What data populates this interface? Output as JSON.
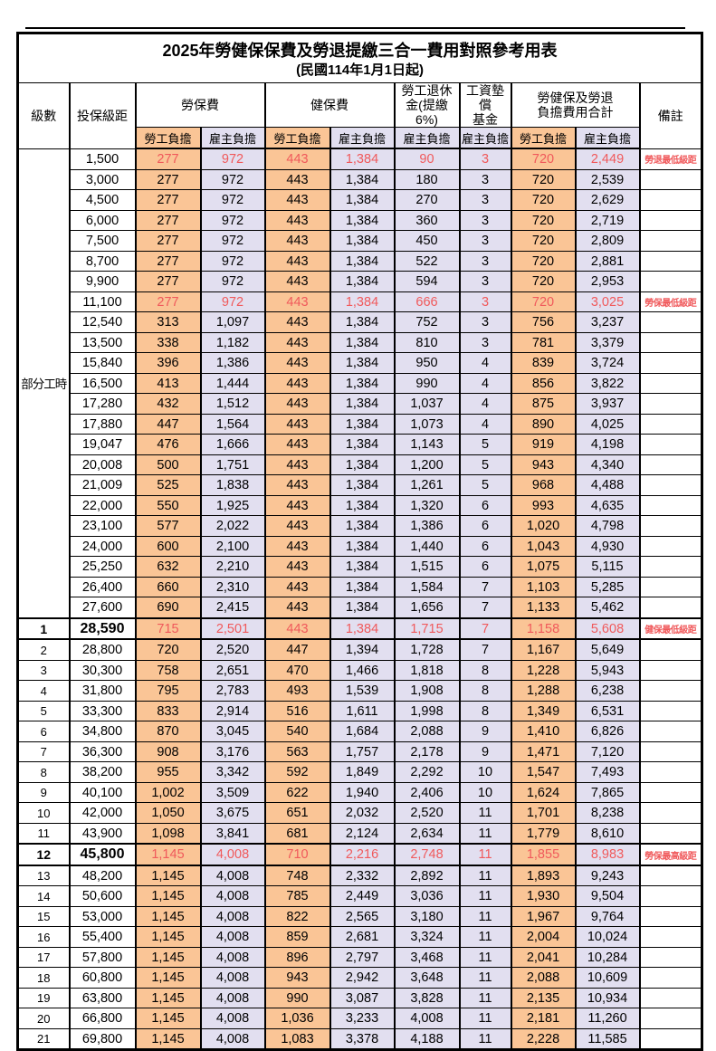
{
  "title": {
    "line1": "2025年勞健保保費及勞退提繳三合一費用對照參考用表",
    "line2": "(民國114年1月1日起)"
  },
  "header": {
    "level": "級數",
    "bracket": "投保級距",
    "labor": "勞保費",
    "health": "健保費",
    "pension": "勞工退休\n金(提繳6%)",
    "wage_fund": "工資墊償\n基金",
    "total": "勞健保及勞退\n負擔費用合計",
    "remark": "備註",
    "emp": "勞工負擔",
    "er": "雇主負擔"
  },
  "part_time_label": "部分工時",
  "part_time_count": 23,
  "colors": {
    "employee_bg": "#FAC596",
    "employer_bg": "#E2DFF0",
    "highlight_text": "#F0595B",
    "border": "#000000"
  },
  "rows": [
    {
      "level": "",
      "bracket": "1,500",
      "v": [
        "277",
        "972",
        "443",
        "1,384",
        "90",
        "3",
        "720",
        "2,449"
      ],
      "remark": "勞退最低級距",
      "red": true,
      "big": false
    },
    {
      "level": "",
      "bracket": "3,000",
      "v": [
        "277",
        "972",
        "443",
        "1,384",
        "180",
        "3",
        "720",
        "2,539"
      ],
      "remark": "",
      "red": false,
      "big": false
    },
    {
      "level": "",
      "bracket": "4,500",
      "v": [
        "277",
        "972",
        "443",
        "1,384",
        "270",
        "3",
        "720",
        "2,629"
      ],
      "remark": "",
      "red": false,
      "big": false
    },
    {
      "level": "",
      "bracket": "6,000",
      "v": [
        "277",
        "972",
        "443",
        "1,384",
        "360",
        "3",
        "720",
        "2,719"
      ],
      "remark": "",
      "red": false,
      "big": false
    },
    {
      "level": "",
      "bracket": "7,500",
      "v": [
        "277",
        "972",
        "443",
        "1,384",
        "450",
        "3",
        "720",
        "2,809"
      ],
      "remark": "",
      "red": false,
      "big": false
    },
    {
      "level": "",
      "bracket": "8,700",
      "v": [
        "277",
        "972",
        "443",
        "1,384",
        "522",
        "3",
        "720",
        "2,881"
      ],
      "remark": "",
      "red": false,
      "big": false
    },
    {
      "level": "",
      "bracket": "9,900",
      "v": [
        "277",
        "972",
        "443",
        "1,384",
        "594",
        "3",
        "720",
        "2,953"
      ],
      "remark": "",
      "red": false,
      "big": false
    },
    {
      "level": "",
      "bracket": "11,100",
      "v": [
        "277",
        "972",
        "443",
        "1,384",
        "666",
        "3",
        "720",
        "3,025"
      ],
      "remark": "勞保最低級距",
      "red": true,
      "big": false
    },
    {
      "level": "",
      "bracket": "12,540",
      "v": [
        "313",
        "1,097",
        "443",
        "1,384",
        "752",
        "3",
        "756",
        "3,237"
      ],
      "remark": "",
      "red": false,
      "big": false
    },
    {
      "level": "",
      "bracket": "13,500",
      "v": [
        "338",
        "1,182",
        "443",
        "1,384",
        "810",
        "3",
        "781",
        "3,379"
      ],
      "remark": "",
      "red": false,
      "big": false
    },
    {
      "level": "",
      "bracket": "15,840",
      "v": [
        "396",
        "1,386",
        "443",
        "1,384",
        "950",
        "4",
        "839",
        "3,724"
      ],
      "remark": "",
      "red": false,
      "big": false
    },
    {
      "level": "",
      "bracket": "16,500",
      "v": [
        "413",
        "1,444",
        "443",
        "1,384",
        "990",
        "4",
        "856",
        "3,822"
      ],
      "remark": "",
      "red": false,
      "big": false
    },
    {
      "level": "",
      "bracket": "17,280",
      "v": [
        "432",
        "1,512",
        "443",
        "1,384",
        "1,037",
        "4",
        "875",
        "3,937"
      ],
      "remark": "",
      "red": false,
      "big": false
    },
    {
      "level": "",
      "bracket": "17,880",
      "v": [
        "447",
        "1,564",
        "443",
        "1,384",
        "1,073",
        "4",
        "890",
        "4,025"
      ],
      "remark": "",
      "red": false,
      "big": false
    },
    {
      "level": "",
      "bracket": "19,047",
      "v": [
        "476",
        "1,666",
        "443",
        "1,384",
        "1,143",
        "5",
        "919",
        "4,198"
      ],
      "remark": "",
      "red": false,
      "big": false
    },
    {
      "level": "",
      "bracket": "20,008",
      "v": [
        "500",
        "1,751",
        "443",
        "1,384",
        "1,200",
        "5",
        "943",
        "4,340"
      ],
      "remark": "",
      "red": false,
      "big": false
    },
    {
      "level": "",
      "bracket": "21,009",
      "v": [
        "525",
        "1,838",
        "443",
        "1,384",
        "1,261",
        "5",
        "968",
        "4,488"
      ],
      "remark": "",
      "red": false,
      "big": false
    },
    {
      "level": "",
      "bracket": "22,000",
      "v": [
        "550",
        "1,925",
        "443",
        "1,384",
        "1,320",
        "6",
        "993",
        "4,635"
      ],
      "remark": "",
      "red": false,
      "big": false
    },
    {
      "level": "",
      "bracket": "23,100",
      "v": [
        "577",
        "2,022",
        "443",
        "1,384",
        "1,386",
        "6",
        "1,020",
        "4,798"
      ],
      "remark": "",
      "red": false,
      "big": false
    },
    {
      "level": "",
      "bracket": "24,000",
      "v": [
        "600",
        "2,100",
        "443",
        "1,384",
        "1,440",
        "6",
        "1,043",
        "4,930"
      ],
      "remark": "",
      "red": false,
      "big": false
    },
    {
      "level": "",
      "bracket": "25,250",
      "v": [
        "632",
        "2,210",
        "443",
        "1,384",
        "1,515",
        "6",
        "1,075",
        "5,115"
      ],
      "remark": "",
      "red": false,
      "big": false
    },
    {
      "level": "",
      "bracket": "26,400",
      "v": [
        "660",
        "2,310",
        "443",
        "1,384",
        "1,584",
        "7",
        "1,103",
        "5,285"
      ],
      "remark": "",
      "red": false,
      "big": false
    },
    {
      "level": "",
      "bracket": "27,600",
      "v": [
        "690",
        "2,415",
        "443",
        "1,384",
        "1,656",
        "7",
        "1,133",
        "5,462"
      ],
      "remark": "",
      "red": false,
      "big": false
    },
    {
      "level": "1",
      "bracket": "28,590",
      "v": [
        "715",
        "2,501",
        "443",
        "1,384",
        "1,715",
        "7",
        "1,158",
        "5,608"
      ],
      "remark": "健保最低級距",
      "red": true,
      "big": true
    },
    {
      "level": "2",
      "bracket": "28,800",
      "v": [
        "720",
        "2,520",
        "447",
        "1,394",
        "1,728",
        "7",
        "1,167",
        "5,649"
      ],
      "remark": "",
      "red": false,
      "big": false
    },
    {
      "level": "3",
      "bracket": "30,300",
      "v": [
        "758",
        "2,651",
        "470",
        "1,466",
        "1,818",
        "8",
        "1,228",
        "5,943"
      ],
      "remark": "",
      "red": false,
      "big": false
    },
    {
      "level": "4",
      "bracket": "31,800",
      "v": [
        "795",
        "2,783",
        "493",
        "1,539",
        "1,908",
        "8",
        "1,288",
        "6,238"
      ],
      "remark": "",
      "red": false,
      "big": false
    },
    {
      "level": "5",
      "bracket": "33,300",
      "v": [
        "833",
        "2,914",
        "516",
        "1,611",
        "1,998",
        "8",
        "1,349",
        "6,531"
      ],
      "remark": "",
      "red": false,
      "big": false
    },
    {
      "level": "6",
      "bracket": "34,800",
      "v": [
        "870",
        "3,045",
        "540",
        "1,684",
        "2,088",
        "9",
        "1,410",
        "6,826"
      ],
      "remark": "",
      "red": false,
      "big": false
    },
    {
      "level": "7",
      "bracket": "36,300",
      "v": [
        "908",
        "3,176",
        "563",
        "1,757",
        "2,178",
        "9",
        "1,471",
        "7,120"
      ],
      "remark": "",
      "red": false,
      "big": false
    },
    {
      "level": "8",
      "bracket": "38,200",
      "v": [
        "955",
        "3,342",
        "592",
        "1,849",
        "2,292",
        "10",
        "1,547",
        "7,493"
      ],
      "remark": "",
      "red": false,
      "big": false
    },
    {
      "level": "9",
      "bracket": "40,100",
      "v": [
        "1,002",
        "3,509",
        "622",
        "1,940",
        "2,406",
        "10",
        "1,624",
        "7,865"
      ],
      "remark": "",
      "red": false,
      "big": false
    },
    {
      "level": "10",
      "bracket": "42,000",
      "v": [
        "1,050",
        "3,675",
        "651",
        "2,032",
        "2,520",
        "11",
        "1,701",
        "8,238"
      ],
      "remark": "",
      "red": false,
      "big": false
    },
    {
      "level": "11",
      "bracket": "43,900",
      "v": [
        "1,098",
        "3,841",
        "681",
        "2,124",
        "2,634",
        "11",
        "1,779",
        "8,610"
      ],
      "remark": "",
      "red": false,
      "big": false
    },
    {
      "level": "12",
      "bracket": "45,800",
      "v": [
        "1,145",
        "4,008",
        "710",
        "2,216",
        "2,748",
        "11",
        "1,855",
        "8,983"
      ],
      "remark": "勞保最高級距",
      "red": true,
      "big": true
    },
    {
      "level": "13",
      "bracket": "48,200",
      "v": [
        "1,145",
        "4,008",
        "748",
        "2,332",
        "2,892",
        "11",
        "1,893",
        "9,243"
      ],
      "remark": "",
      "red": false,
      "big": false
    },
    {
      "level": "14",
      "bracket": "50,600",
      "v": [
        "1,145",
        "4,008",
        "785",
        "2,449",
        "3,036",
        "11",
        "1,930",
        "9,504"
      ],
      "remark": "",
      "red": false,
      "big": false
    },
    {
      "level": "15",
      "bracket": "53,000",
      "v": [
        "1,145",
        "4,008",
        "822",
        "2,565",
        "3,180",
        "11",
        "1,967",
        "9,764"
      ],
      "remark": "",
      "red": false,
      "big": false
    },
    {
      "level": "16",
      "bracket": "55,400",
      "v": [
        "1,145",
        "4,008",
        "859",
        "2,681",
        "3,324",
        "11",
        "2,004",
        "10,024"
      ],
      "remark": "",
      "red": false,
      "big": false
    },
    {
      "level": "17",
      "bracket": "57,800",
      "v": [
        "1,145",
        "4,008",
        "896",
        "2,797",
        "3,468",
        "11",
        "2,041",
        "10,284"
      ],
      "remark": "",
      "red": false,
      "big": false
    },
    {
      "level": "18",
      "bracket": "60,800",
      "v": [
        "1,145",
        "4,008",
        "943",
        "2,942",
        "3,648",
        "11",
        "2,088",
        "10,609"
      ],
      "remark": "",
      "red": false,
      "big": false
    },
    {
      "level": "19",
      "bracket": "63,800",
      "v": [
        "1,145",
        "4,008",
        "990",
        "3,087",
        "3,828",
        "11",
        "2,135",
        "10,934"
      ],
      "remark": "",
      "red": false,
      "big": false
    },
    {
      "level": "20",
      "bracket": "66,800",
      "v": [
        "1,145",
        "4,008",
        "1,036",
        "3,233",
        "4,008",
        "11",
        "2,181",
        "11,260"
      ],
      "remark": "",
      "red": false,
      "big": false
    },
    {
      "level": "21",
      "bracket": "69,800",
      "v": [
        "1,145",
        "4,008",
        "1,083",
        "3,378",
        "4,188",
        "11",
        "2,228",
        "11,585"
      ],
      "remark": "",
      "red": false,
      "big": false
    }
  ]
}
